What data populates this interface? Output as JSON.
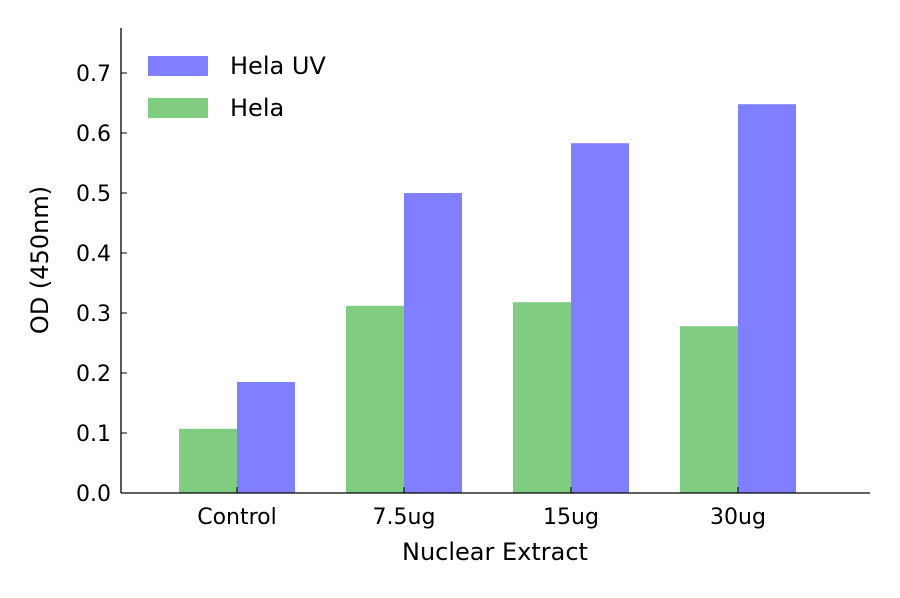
{
  "chart_data": {
    "type": "bar",
    "title": "",
    "xlabel": "Nuclear Extract",
    "ylabel": "OD (450nm)",
    "categories": [
      "Control",
      "7.5ug",
      "15ug",
      "30ug"
    ],
    "series": [
      {
        "name": "Hela",
        "color": "#80cc80",
        "values": [
          0.107,
          0.312,
          0.318,
          0.278
        ]
      },
      {
        "name": "Hela UV",
        "color": "#7f7fff",
        "values": [
          0.185,
          0.5,
          0.583,
          0.648
        ]
      }
    ],
    "ylim": [
      0,
      0.775
    ],
    "yticks": [
      "0.0",
      "0.1",
      "0.2",
      "0.3",
      "0.4",
      "0.5",
      "0.6",
      "0.7"
    ],
    "grid": false,
    "legend": {
      "placement": "top-left",
      "entries": [
        "Hela UV",
        "Hela"
      ]
    }
  }
}
